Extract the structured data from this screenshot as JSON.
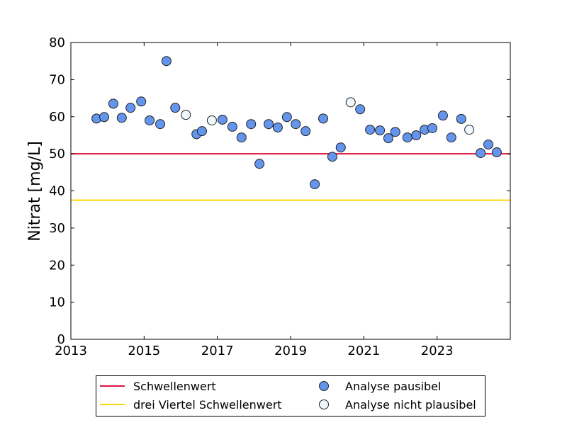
{
  "chart_data": {
    "type": "scatter",
    "title": "",
    "xlabel": "",
    "ylabel": "Nitrat [mg/L]",
    "xlim": [
      2013,
      2025
    ],
    "ylim": [
      0,
      80
    ],
    "xticks": [
      "2013",
      "2015",
      "2017",
      "2019",
      "2021",
      "2023"
    ],
    "yticks": [
      "0",
      "10",
      "20",
      "30",
      "40",
      "50",
      "60",
      "70",
      "80"
    ],
    "grid": false,
    "legend_position": "bottom, below plot",
    "hlines": [
      {
        "name": "Schwellenwert",
        "y": 50,
        "color": "#DC143C"
      },
      {
        "name": "drei Viertel Schwellenwert",
        "y": 37.5,
        "color": "#FFD700"
      }
    ],
    "series": [
      {
        "name": "Analyse pausibel",
        "color": "#6495ED",
        "points": [
          [
            2013.7,
            59.5
          ],
          [
            2013.91,
            59.9
          ],
          [
            2014.16,
            63.5
          ],
          [
            2014.39,
            59.7
          ],
          [
            2014.63,
            62.4
          ],
          [
            2014.92,
            64.1
          ],
          [
            2015.15,
            59.0
          ],
          [
            2015.44,
            58.0
          ],
          [
            2015.61,
            75.0
          ],
          [
            2015.85,
            62.4
          ],
          [
            2016.43,
            55.3
          ],
          [
            2016.58,
            56.1
          ],
          [
            2017.14,
            59.2
          ],
          [
            2017.41,
            57.3
          ],
          [
            2017.66,
            54.4
          ],
          [
            2017.92,
            58.0
          ],
          [
            2018.15,
            47.3
          ],
          [
            2018.4,
            58.0
          ],
          [
            2018.65,
            57.1
          ],
          [
            2018.9,
            59.9
          ],
          [
            2019.14,
            58.0
          ],
          [
            2019.41,
            56.1
          ],
          [
            2019.66,
            41.8
          ],
          [
            2019.89,
            59.5
          ],
          [
            2020.14,
            49.2
          ],
          [
            2020.37,
            51.7
          ],
          [
            2020.9,
            62.0
          ],
          [
            2021.17,
            56.5
          ],
          [
            2021.44,
            56.3
          ],
          [
            2021.67,
            54.2
          ],
          [
            2021.86,
            55.9
          ],
          [
            2022.19,
            54.4
          ],
          [
            2022.43,
            55.0
          ],
          [
            2022.66,
            56.5
          ],
          [
            2022.87,
            56.9
          ],
          [
            2023.16,
            60.3
          ],
          [
            2023.39,
            54.4
          ],
          [
            2023.66,
            59.4
          ],
          [
            2024.19,
            50.2
          ],
          [
            2024.4,
            52.5
          ],
          [
            2024.63,
            50.4
          ]
        ]
      },
      {
        "name": "Analyse nicht plausibel",
        "color": "#F0F8FF",
        "points": [
          [
            2016.14,
            60.5
          ],
          [
            2016.85,
            59.0
          ],
          [
            2020.64,
            63.9
          ],
          [
            2023.88,
            56.5
          ]
        ]
      }
    ]
  }
}
